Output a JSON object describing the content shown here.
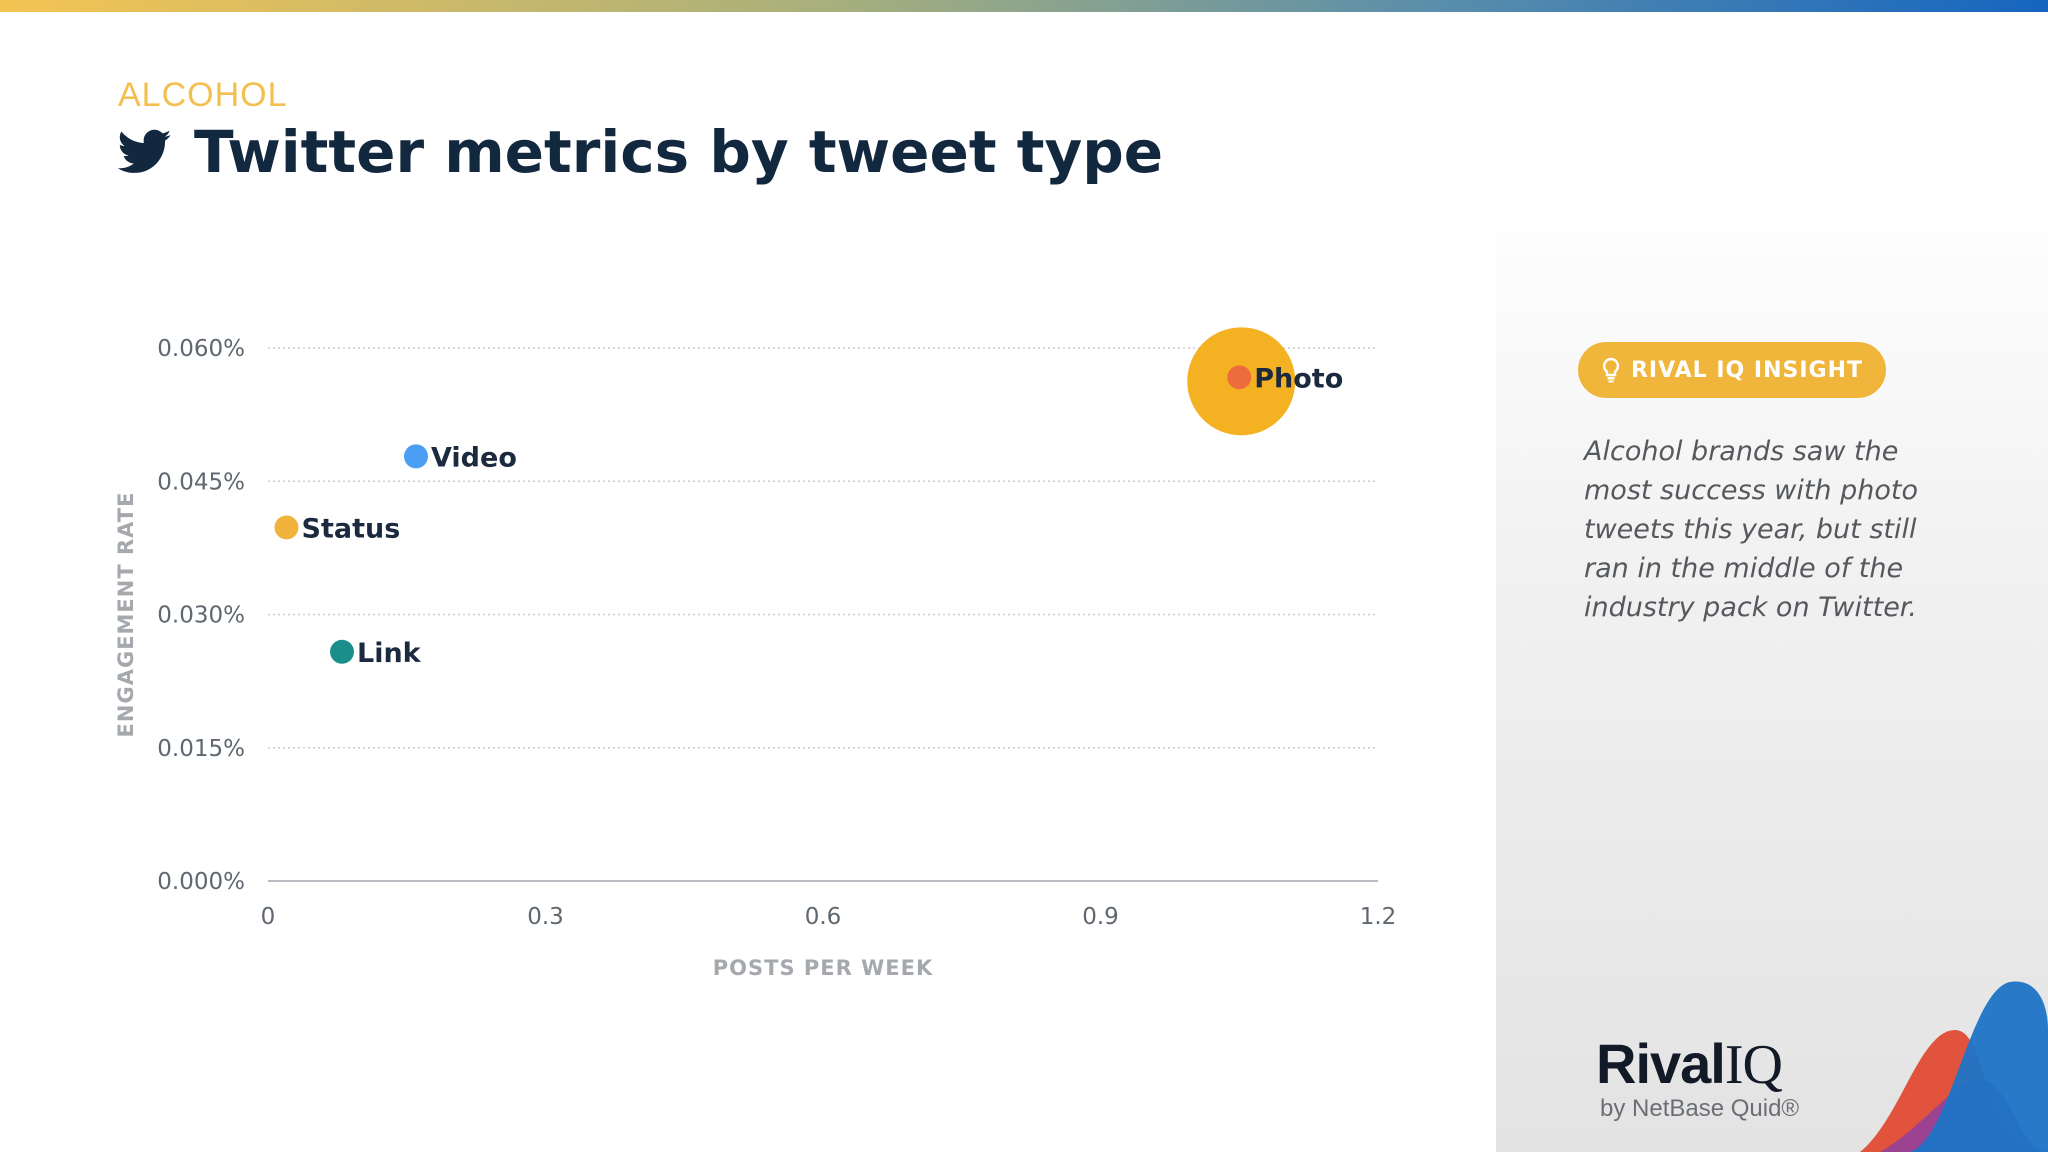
{
  "header": {
    "category": "ALCOHOL",
    "title": "Twitter metrics by tweet type",
    "icon": "twitter-bird-icon"
  },
  "chart_data": {
    "type": "scatter",
    "xlabel": "POSTS PER WEEK",
    "ylabel": "ENGAGEMENT RATE",
    "xlim": [
      0,
      1.2
    ],
    "ylim": [
      0,
      0.06
    ],
    "x_ticks": [
      "0",
      "0.3",
      "0.6",
      "0.9",
      "1.2"
    ],
    "y_ticks": [
      "0.000%",
      "0.015%",
      "0.030%",
      "0.045%",
      "0.060%"
    ],
    "grid": true,
    "points": [
      {
        "label": "Photo",
        "x": 1.05,
        "y": 0.0567,
        "color": "#ee6b3d",
        "highlight_color": "#f4b223"
      },
      {
        "label": "Video",
        "x": 0.16,
        "y": 0.0478,
        "color": "#4a9ff5"
      },
      {
        "label": "Status",
        "x": 0.02,
        "y": 0.0398,
        "color": "#f2b33d"
      },
      {
        "label": "Link",
        "x": 0.08,
        "y": 0.0258,
        "color": "#1a8f8a"
      }
    ]
  },
  "insight": {
    "badge_label": "RIVAL IQ INSIGHT",
    "badge_icon": "lightbulb-icon",
    "text": "Alcohol brands saw the most success with photo tweets this year, but still ran in the middle of the industry pack on Twitter."
  },
  "brand": {
    "logo_main_a": "Rival",
    "logo_main_b": "IQ",
    "logo_sub": "by NetBase Quid®"
  },
  "colors": {
    "accent_yellow": "#f0b63b",
    "title_navy": "#12283f"
  }
}
